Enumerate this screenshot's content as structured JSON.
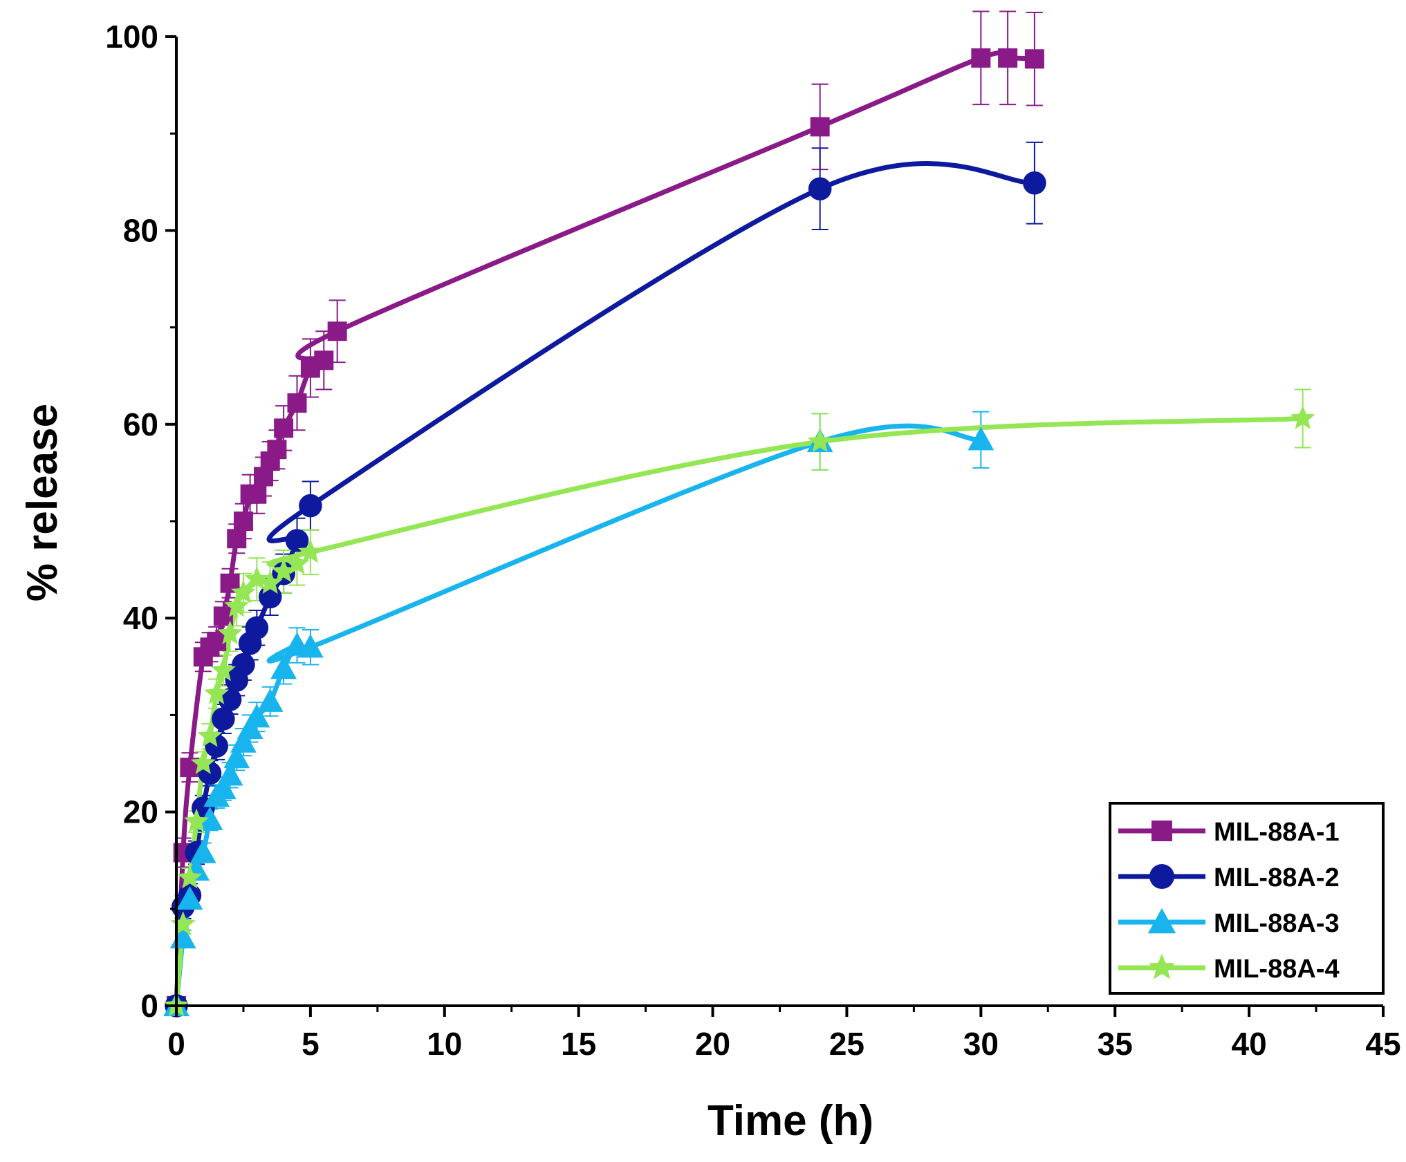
{
  "chart_data": {
    "type": "line",
    "title": "",
    "xlabel": "Time (h)",
    "ylabel": "% release",
    "xlim": [
      0,
      45
    ],
    "ylim": [
      0,
      100
    ],
    "xticks": [
      0,
      5,
      10,
      15,
      20,
      25,
      30,
      35,
      40,
      45
    ],
    "yticks": [
      0,
      20,
      40,
      60,
      80,
      100
    ],
    "grid": false,
    "legend_position": "bottom-right",
    "series": [
      {
        "name": "MIL-88A-1",
        "color": "#8B1A89",
        "marker": "square",
        "points": [
          {
            "x": 0,
            "y": 0,
            "err": 0
          },
          {
            "x": 0.25,
            "y": 15.8,
            "err": 1.5
          },
          {
            "x": 0.5,
            "y": 24.6,
            "err": 1.5
          },
          {
            "x": 1.0,
            "y": 36.0,
            "err": 1.5
          },
          {
            "x": 1.25,
            "y": 37.0,
            "err": 1.5
          },
          {
            "x": 1.5,
            "y": 37.6,
            "err": 1.5
          },
          {
            "x": 1.75,
            "y": 40.2,
            "err": 1.5
          },
          {
            "x": 2.0,
            "y": 43.6,
            "err": 1.5
          },
          {
            "x": 2.25,
            "y": 48.2,
            "err": 1.5
          },
          {
            "x": 2.5,
            "y": 50.0,
            "err": 1.8
          },
          {
            "x": 2.75,
            "y": 52.8,
            "err": 2.0
          },
          {
            "x": 3.0,
            "y": 52.8,
            "err": 2.0
          },
          {
            "x": 3.25,
            "y": 54.6,
            "err": 2.0
          },
          {
            "x": 3.5,
            "y": 56.2,
            "err": 2.0
          },
          {
            "x": 3.75,
            "y": 57.4,
            "err": 2.0
          },
          {
            "x": 4.0,
            "y": 59.6,
            "err": 2.3
          },
          {
            "x": 4.5,
            "y": 62.2,
            "err": 2.8
          },
          {
            "x": 5.0,
            "y": 65.8,
            "err": 3.0
          },
          {
            "x": 5.5,
            "y": 66.6,
            "err": 3.0
          },
          {
            "x": 6.0,
            "y": 69.6,
            "err": 3.2
          },
          {
            "x": 24,
            "y": 90.7,
            "err": 4.4
          },
          {
            "x": 30,
            "y": 97.8,
            "err": 4.8
          },
          {
            "x": 31,
            "y": 97.8,
            "err": 4.8
          },
          {
            "x": 32,
            "y": 97.7,
            "err": 4.8
          }
        ]
      },
      {
        "name": "MIL-88A-2",
        "color": "#0D1A9E",
        "marker": "circle",
        "points": [
          {
            "x": 0,
            "y": 0,
            "err": 0
          },
          {
            "x": 0.25,
            "y": 10.2,
            "err": 1.2
          },
          {
            "x": 0.5,
            "y": 11.4,
            "err": 1.2
          },
          {
            "x": 0.75,
            "y": 15.8,
            "err": 1.2
          },
          {
            "x": 1.0,
            "y": 20.4,
            "err": 1.3
          },
          {
            "x": 1.25,
            "y": 24.0,
            "err": 1.3
          },
          {
            "x": 1.5,
            "y": 26.8,
            "err": 1.4
          },
          {
            "x": 1.75,
            "y": 29.6,
            "err": 1.5
          },
          {
            "x": 2.0,
            "y": 31.6,
            "err": 1.5
          },
          {
            "x": 2.25,
            "y": 33.6,
            "err": 1.6
          },
          {
            "x": 2.5,
            "y": 35.2,
            "err": 1.6
          },
          {
            "x": 2.75,
            "y": 37.4,
            "err": 1.7
          },
          {
            "x": 3.0,
            "y": 39.0,
            "err": 1.8
          },
          {
            "x": 3.5,
            "y": 42.2,
            "err": 1.9
          },
          {
            "x": 4.0,
            "y": 44.6,
            "err": 2.0
          },
          {
            "x": 4.5,
            "y": 48.0,
            "err": 2.3
          },
          {
            "x": 5.0,
            "y": 51.6,
            "err": 2.5
          },
          {
            "x": 24,
            "y": 84.3,
            "err": 4.2
          },
          {
            "x": 32,
            "y": 84.9,
            "err": 4.2
          }
        ]
      },
      {
        "name": "MIL-88A-3",
        "color": "#18B4EE",
        "marker": "triangle",
        "points": [
          {
            "x": 0,
            "y": 0,
            "err": 0
          },
          {
            "x": 0.25,
            "y": 7.0,
            "err": 0.8
          },
          {
            "x": 0.5,
            "y": 11.0,
            "err": 0.9
          },
          {
            "x": 0.75,
            "y": 14.0,
            "err": 1.0
          },
          {
            "x": 1.0,
            "y": 15.8,
            "err": 1.0
          },
          {
            "x": 1.25,
            "y": 19.2,
            "err": 1.1
          },
          {
            "x": 1.5,
            "y": 21.6,
            "err": 1.2
          },
          {
            "x": 1.75,
            "y": 22.4,
            "err": 1.2
          },
          {
            "x": 2.0,
            "y": 23.8,
            "err": 1.3
          },
          {
            "x": 2.25,
            "y": 25.6,
            "err": 1.3
          },
          {
            "x": 2.5,
            "y": 27.2,
            "err": 1.4
          },
          {
            "x": 2.75,
            "y": 28.6,
            "err": 1.4
          },
          {
            "x": 3.0,
            "y": 29.8,
            "err": 1.5
          },
          {
            "x": 3.5,
            "y": 31.4,
            "err": 1.5
          },
          {
            "x": 4.0,
            "y": 34.8,
            "err": 1.6
          },
          {
            "x": 4.5,
            "y": 37.2,
            "err": 1.8
          },
          {
            "x": 5.0,
            "y": 37.0,
            "err": 1.8
          },
          {
            "x": 24,
            "y": 58.2,
            "err": 2.9
          },
          {
            "x": 30,
            "y": 58.4,
            "err": 2.9
          }
        ]
      },
      {
        "name": "MIL-88A-4",
        "color": "#94E654",
        "marker": "star",
        "points": [
          {
            "x": 0,
            "y": 0,
            "err": 0
          },
          {
            "x": 0.25,
            "y": 8.4,
            "err": 1.0
          },
          {
            "x": 0.5,
            "y": 13.2,
            "err": 1.0
          },
          {
            "x": 0.75,
            "y": 19.0,
            "err": 1.1
          },
          {
            "x": 1.0,
            "y": 25.0,
            "err": 1.2
          },
          {
            "x": 1.25,
            "y": 27.8,
            "err": 1.3
          },
          {
            "x": 1.5,
            "y": 32.2,
            "err": 1.5
          },
          {
            "x": 1.75,
            "y": 34.6,
            "err": 1.6
          },
          {
            "x": 2.0,
            "y": 38.4,
            "err": 1.8
          },
          {
            "x": 2.25,
            "y": 41.2,
            "err": 2.0
          },
          {
            "x": 2.5,
            "y": 42.6,
            "err": 2.0
          },
          {
            "x": 3.0,
            "y": 44.0,
            "err": 2.2
          },
          {
            "x": 3.5,
            "y": 43.6,
            "err": 2.2
          },
          {
            "x": 4.0,
            "y": 44.8,
            "err": 2.2
          },
          {
            "x": 4.5,
            "y": 45.6,
            "err": 2.2
          },
          {
            "x": 5.0,
            "y": 46.8,
            "err": 2.3
          },
          {
            "x": 24,
            "y": 58.2,
            "err": 2.9
          },
          {
            "x": 42,
            "y": 60.6,
            "err": 3.0
          }
        ]
      }
    ]
  }
}
